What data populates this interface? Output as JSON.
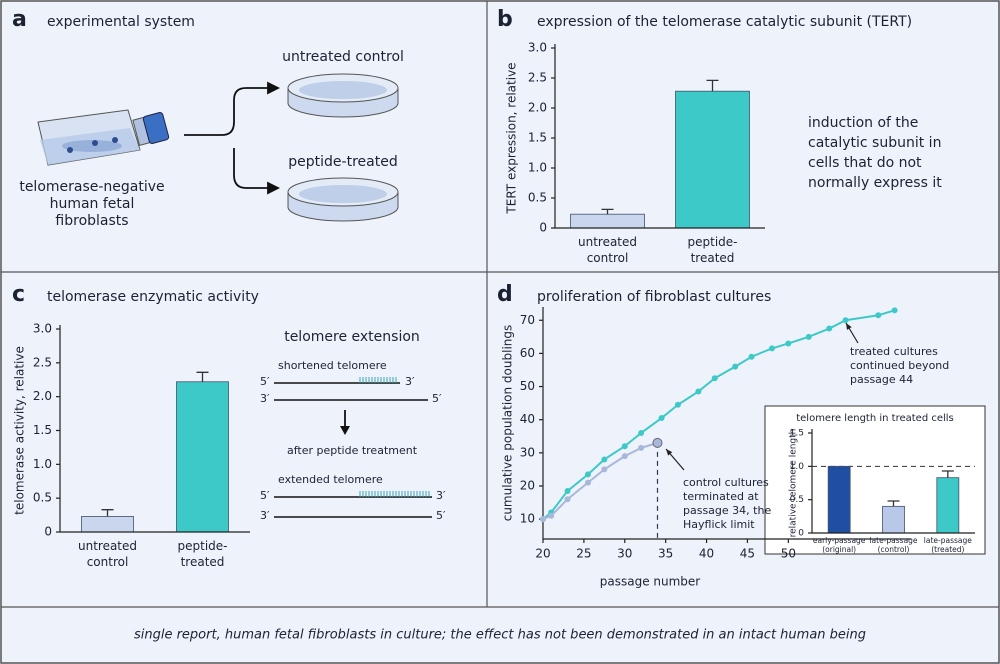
{
  "panel_a": {
    "letter": "a",
    "title": "experimental system",
    "source": [
      "telomerase-negative",
      "human fetal",
      "fibroblasts"
    ],
    "groups": [
      "untreated control",
      "peptide-treated"
    ]
  },
  "panel_b_note": [
    "induction of the",
    "catalytic subunit in",
    "cells that do not",
    "normally express it"
  ],
  "telomere_diagram": {
    "title": "telomere extension",
    "before": "shortened telomere",
    "step": "after peptide treatment",
    "after": "extended telomere",
    "ends": [
      "5′",
      "3′"
    ]
  },
  "footer": "single report, human fetal fibroblasts in culture; the effect has not been demonstrated in an intact human being",
  "chart_data": [
    {
      "type": "bar",
      "panel": "b",
      "title": "expression of the telomerase catalytic subunit (TERT)",
      "ylabel": "TERT expression, relative",
      "categories": [
        [
          "untreated",
          "control"
        ],
        [
          "peptide-",
          "treated"
        ]
      ],
      "values": [
        0.23,
        2.28
      ],
      "errors": [
        0.08,
        0.18
      ],
      "colors": [
        "#c9d6ee",
        "#3ec9c9"
      ],
      "ylim": [
        0,
        3
      ],
      "yticks": [
        0,
        0.5,
        {
          "value": 1,
          "label": "1.0"
        },
        1.5,
        {
          "value": 2,
          "label": "2.0"
        },
        2.5,
        {
          "value": 3,
          "label": "3.0"
        }
      ]
    },
    {
      "type": "bar",
      "panel": "c",
      "title": "telomerase enzymatic activity",
      "ylabel": "telomerase activity, relative",
      "categories": [
        [
          "untreated",
          "control"
        ],
        [
          "peptide-",
          "treated"
        ]
      ],
      "values": [
        0.23,
        2.22
      ],
      "errors": [
        0.1,
        0.14
      ],
      "colors": [
        "#c9d6ee",
        "#3ec9c9"
      ],
      "ylim": [
        0,
        3
      ],
      "yticks": [
        0,
        0.5,
        {
          "value": 1,
          "label": "1.0"
        },
        1.5,
        {
          "value": 2,
          "label": "2.0"
        },
        2.5,
        {
          "value": 3,
          "label": "3.0"
        }
      ]
    },
    {
      "type": "line",
      "panel": "d",
      "title": "proliferation of fibroblast cultures",
      "xlabel": "passage number",
      "ylabel": "cumulative population doublings",
      "series": [
        {
          "color": "#3ec9c9",
          "x": [
            20,
            21,
            23,
            25.5,
            27.5,
            30,
            32,
            34.5,
            36.5,
            39,
            41,
            43.5,
            45.5,
            48,
            50,
            52.5,
            55,
            57,
            61,
            63
          ],
          "values": [
            10,
            12,
            18.5,
            23.5,
            28,
            32,
            36,
            40.5,
            44.5,
            48.5,
            52.5,
            56,
            59,
            61.5,
            63,
            65,
            67.5,
            70,
            71.5,
            73
          ]
        },
        {
          "color": "#a9b8d8",
          "x": [
            20,
            21,
            23,
            25.5,
            27.5,
            30,
            32,
            34
          ],
          "values": [
            10,
            11,
            16,
            21,
            25,
            29,
            31.5,
            33
          ]
        }
      ],
      "annotations": [
        [
          "treated cultures",
          "continued beyond",
          "passage 44"
        ],
        [
          "control cultures",
          "terminated at",
          "passage 34, the",
          "Hayflick limit"
        ]
      ],
      "xlim": [
        20,
        65
      ],
      "xticks": [
        20,
        25,
        30,
        35,
        40,
        45,
        50
      ],
      "ylim": [
        4,
        74
      ],
      "yticks": [
        10,
        20,
        30,
        40,
        50,
        60,
        70
      ]
    },
    {
      "type": "bar",
      "title": "telomere length in treated cells",
      "ylabel": "relative telomere length",
      "categories": [
        [
          "early-passage",
          "(original)"
        ],
        [
          "late-passage",
          "(control)"
        ],
        [
          "late-passage",
          "(treated)"
        ]
      ],
      "values": [
        1.0,
        0.4,
        0.83
      ],
      "errors": [
        0,
        0.08,
        0.1
      ],
      "colors": [
        "#1f4fa0",
        "#b9c8e8",
        "#3ec9c9"
      ],
      "refline": 1,
      "ylim": [
        0,
        1.5
      ],
      "yticks": [
        0,
        0.5,
        {
          "value": 1,
          "label": "1.0"
        },
        1.5
      ]
    }
  ]
}
